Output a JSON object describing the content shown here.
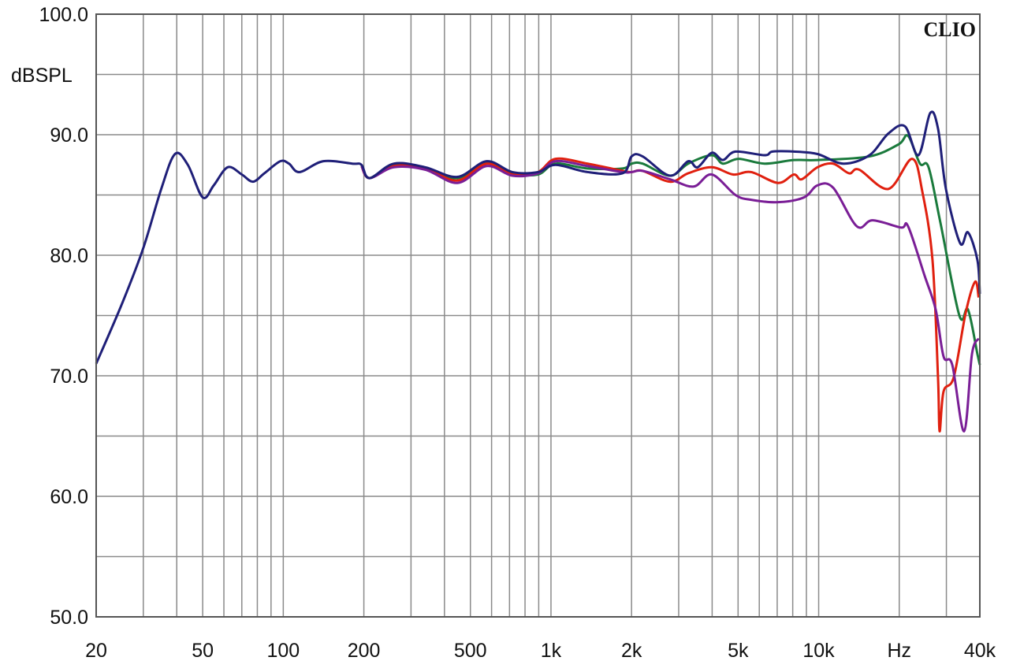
{
  "chart_data": {
    "type": "line",
    "title": "",
    "brand": "CLIO",
    "ylabel": "dBSPL",
    "xlabel": "Hz",
    "x_scale": "log",
    "xlim": [
      20,
      40000
    ],
    "ylim": [
      50,
      100
    ],
    "grid": true,
    "y_ticks": [
      {
        "value": 100,
        "label": "100.0"
      },
      {
        "value": 90,
        "label": "90.0"
      },
      {
        "value": 80,
        "label": "80.0"
      },
      {
        "value": 70,
        "label": "70.0"
      },
      {
        "value": 60,
        "label": "60.0"
      },
      {
        "value": 50,
        "label": "50.0"
      }
    ],
    "x_ticks": [
      {
        "value": 20,
        "label": "20"
      },
      {
        "value": 50,
        "label": "50"
      },
      {
        "value": 100,
        "label": "100"
      },
      {
        "value": 200,
        "label": "200"
      },
      {
        "value": 500,
        "label": "500"
      },
      {
        "value": 1000,
        "label": "1k"
      },
      {
        "value": 2000,
        "label": "2k"
      },
      {
        "value": 5000,
        "label": "5k"
      },
      {
        "value": 10000,
        "label": "10k"
      },
      {
        "value": 20000,
        "label": "Hz"
      },
      {
        "value": 40000,
        "label": "40k"
      }
    ],
    "series": [
      {
        "color": "#1f1f78",
        "points": [
          [
            20,
            71.0
          ],
          [
            25,
            76.0
          ],
          [
            30,
            80.6
          ],
          [
            35,
            85.5
          ],
          [
            39.4,
            88.4
          ],
          [
            44,
            87.5
          ],
          [
            50,
            84.8
          ],
          [
            55,
            85.8
          ],
          [
            62,
            87.3
          ],
          [
            70,
            86.7
          ],
          [
            77,
            86.1
          ],
          [
            85,
            86.8
          ],
          [
            97.5,
            87.8
          ],
          [
            105,
            87.6
          ],
          [
            115,
            86.9
          ],
          [
            141,
            87.8
          ],
          [
            181,
            87.6
          ],
          [
            196,
            87.5
          ],
          [
            210,
            86.4
          ],
          [
            259,
            87.6
          ],
          [
            339,
            87.3
          ],
          [
            447,
            86.5
          ],
          [
            575,
            87.8
          ],
          [
            717,
            86.9
          ],
          [
            894,
            86.9
          ],
          [
            1040,
            87.5
          ],
          [
            1370,
            86.9
          ],
          [
            1850,
            86.8
          ],
          [
            2000,
            88.2
          ],
          [
            2200,
            88.2
          ],
          [
            2784,
            86.6
          ],
          [
            3254,
            87.8
          ],
          [
            3530,
            87.3
          ],
          [
            3988,
            88.5
          ],
          [
            4386,
            87.9
          ],
          [
            4888,
            88.6
          ],
          [
            6282,
            88.3
          ],
          [
            6722,
            88.6
          ],
          [
            8072,
            88.6
          ],
          [
            9896,
            88.4
          ],
          [
            12376,
            87.6
          ],
          [
            15478,
            88.3
          ],
          [
            18216,
            90.1
          ],
          [
            21000,
            90.7
          ],
          [
            23580,
            88.3
          ],
          [
            26100,
            91.8
          ],
          [
            27920,
            90.5
          ],
          [
            29880,
            85.5
          ],
          [
            33760,
            81.0
          ],
          [
            36120,
            81.9
          ],
          [
            39180,
            79.6
          ],
          [
            40000,
            76.8
          ]
        ]
      },
      {
        "color": "#1a7a3c",
        "points": [
          [
            196,
            87.5
          ],
          [
            210,
            86.4
          ],
          [
            259,
            87.5
          ],
          [
            339,
            87.2
          ],
          [
            447,
            86.4
          ],
          [
            575,
            87.7
          ],
          [
            717,
            86.8
          ],
          [
            894,
            86.7
          ],
          [
            1040,
            87.6
          ],
          [
            1370,
            87.2
          ],
          [
            1850,
            87.2
          ],
          [
            2000,
            87.6
          ],
          [
            2200,
            87.6
          ],
          [
            2784,
            86.6
          ],
          [
            3254,
            87.6
          ],
          [
            3988,
            88.3
          ],
          [
            4386,
            87.6
          ],
          [
            5022,
            88.0
          ],
          [
            6282,
            87.6
          ],
          [
            8072,
            87.9
          ],
          [
            9896,
            87.9
          ],
          [
            15478,
            88.2
          ],
          [
            19890,
            89.2
          ],
          [
            21580,
            89.9
          ],
          [
            23900,
            87.6
          ],
          [
            25740,
            87.3
          ],
          [
            28500,
            82.7
          ],
          [
            33540,
            75.0
          ],
          [
            36120,
            75.5
          ],
          [
            39180,
            71.8
          ],
          [
            40000,
            70.9
          ]
        ]
      },
      {
        "color": "#e0200f",
        "points": [
          [
            196,
            87.4
          ],
          [
            210,
            86.4
          ],
          [
            259,
            87.4
          ],
          [
            339,
            87.2
          ],
          [
            447,
            86.2
          ],
          [
            575,
            87.6
          ],
          [
            717,
            86.7
          ],
          [
            894,
            86.9
          ],
          [
            1040,
            88.0
          ],
          [
            1370,
            87.6
          ],
          [
            1850,
            87.0
          ],
          [
            2000,
            86.9
          ],
          [
            2200,
            87.0
          ],
          [
            2784,
            86.1
          ],
          [
            3254,
            86.8
          ],
          [
            3988,
            87.3
          ],
          [
            4788,
            86.7
          ],
          [
            5598,
            86.9
          ],
          [
            7050,
            86.0
          ],
          [
            8072,
            86.7
          ],
          [
            8640,
            86.3
          ],
          [
            9896,
            87.3
          ],
          [
            11330,
            87.6
          ],
          [
            12978,
            86.8
          ],
          [
            14172,
            87.1
          ],
          [
            18216,
            85.5
          ],
          [
            22320,
            88.0
          ],
          [
            24380,
            85.3
          ],
          [
            26620,
            79.6
          ],
          [
            27920,
            69.8
          ],
          [
            28300,
            65.4
          ],
          [
            29280,
            68.7
          ],
          [
            31980,
            69.9
          ],
          [
            35400,
            75.2
          ],
          [
            38400,
            77.8
          ],
          [
            39600,
            76.5
          ]
        ]
      },
      {
        "color": "#7a1e96",
        "points": [
          [
            196,
            87.4
          ],
          [
            210,
            86.4
          ],
          [
            259,
            87.3
          ],
          [
            339,
            87.1
          ],
          [
            447,
            86.0
          ],
          [
            575,
            87.4
          ],
          [
            717,
            86.6
          ],
          [
            894,
            86.8
          ],
          [
            1040,
            87.8
          ],
          [
            1370,
            87.4
          ],
          [
            1850,
            86.9
          ],
          [
            2000,
            86.9
          ],
          [
            2200,
            87.0
          ],
          [
            2784,
            86.3
          ],
          [
            3412,
            85.7
          ],
          [
            3988,
            86.7
          ],
          [
            4888,
            85.0
          ],
          [
            5598,
            84.6
          ],
          [
            7050,
            84.4
          ],
          [
            8818,
            84.8
          ],
          [
            9896,
            85.8
          ],
          [
            11330,
            85.6
          ],
          [
            13886,
            82.4
          ],
          [
            15900,
            82.9
          ],
          [
            20300,
            82.3
          ],
          [
            21580,
            82.4
          ],
          [
            24880,
            78.3
          ],
          [
            27360,
            75.5
          ],
          [
            29280,
            71.6
          ],
          [
            31560,
            70.9
          ],
          [
            34940,
            65.4
          ],
          [
            37380,
            71.8
          ],
          [
            39600,
            73.1
          ]
        ]
      }
    ]
  }
}
